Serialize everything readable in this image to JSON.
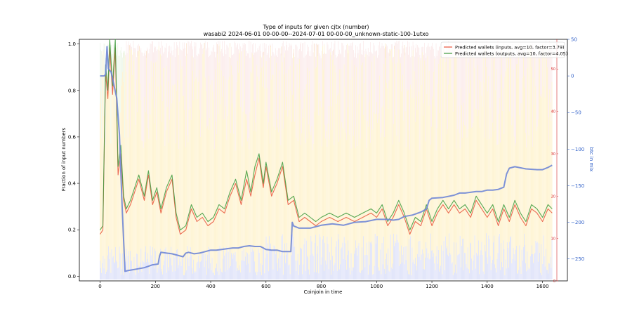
{
  "chart_data": {
    "type": "line",
    "title": "Type of inputs for given cjtx (number)",
    "subtitle": "wasabi2 2024-06-01 00-00-00--2024-07-01 00-00-00_unknown-static-100-1utxo",
    "xlabel": "Coinjoin in time",
    "ylabel": "Fraction of input numbers",
    "y2label": "btc in mix",
    "xlim": [
      -75,
      1690
    ],
    "ylim": [
      -0.02,
      1.02
    ],
    "y_red_lim": [
      0,
      57
    ],
    "y_blue_lim": [
      -280,
      50
    ],
    "x_ticks": [
      "0",
      "200",
      "400",
      "600",
      "800",
      "1000",
      "1200",
      "1400",
      "1600"
    ],
    "y_ticks": [
      "0.0",
      "0.2",
      "0.4",
      "0.6",
      "0.8",
      "1.0"
    ],
    "y_red_ticks": [
      "0",
      "10",
      "20",
      "30",
      "40",
      "50"
    ],
    "y_blue_ticks": [
      "50",
      "0",
      "−50",
      "−100",
      "−150",
      "−200",
      "−250"
    ],
    "legend": {
      "position": "upper right",
      "entries": [
        {
          "label": "Predicted wallets (inputs, avg=10, factor=3.79)",
          "color": "#e8533a"
        },
        {
          "label": "Predicted wallets (outputs, avg=10, factor=4.05)",
          "color": "#3c9a3c"
        }
      ]
    },
    "series": [
      {
        "name": "Predicted wallets (inputs, avg=10, factor=3.79)",
        "axis": "red",
        "color": "#e8533a",
        "x": [
          0,
          10,
          20,
          28,
          35,
          45,
          55,
          65,
          75,
          85,
          95,
          110,
          125,
          140,
          160,
          175,
          190,
          205,
          220,
          240,
          260,
          275,
          290,
          310,
          330,
          350,
          370,
          390,
          410,
          430,
          450,
          470,
          490,
          510,
          530,
          545,
          560,
          575,
          590,
          600,
          620,
          640,
          660,
          680,
          700,
          720,
          740,
          760,
          780,
          800,
          830,
          860,
          890,
          920,
          950,
          980,
          1000,
          1020,
          1040,
          1060,
          1080,
          1100,
          1120,
          1140,
          1160,
          1180,
          1200,
          1220,
          1240,
          1260,
          1280,
          1300,
          1320,
          1340,
          1360,
          1380,
          1400,
          1420,
          1440,
          1460,
          1480,
          1500,
          1520,
          1540,
          1560,
          1580,
          1600,
          1620,
          1635
        ],
        "y": [
          11,
          12,
          49,
          43,
          55,
          44,
          55,
          25,
          30,
          19,
          16,
          18,
          21,
          24,
          19,
          25,
          18,
          21,
          16,
          21,
          24,
          15,
          11,
          12,
          17,
          14,
          15,
          13,
          14,
          17,
          16,
          20,
          23,
          18,
          24,
          20,
          25,
          29,
          22,
          27,
          20,
          23,
          27,
          18,
          19,
          14,
          15,
          14,
          13,
          14,
          15,
          14,
          15,
          14,
          15,
          16,
          15,
          17,
          13,
          15,
          18,
          15,
          11,
          14,
          13,
          17,
          13,
          16,
          18,
          16,
          18,
          16,
          17,
          15,
          19,
          17,
          15,
          17,
          13,
          17,
          14,
          18,
          15,
          13,
          17,
          16,
          14,
          17,
          16
        ]
      },
      {
        "name": "Predicted wallets (outputs, avg=10, factor=4.05)",
        "axis": "red",
        "color": "#3c9a3c",
        "x": [
          0,
          10,
          20,
          28,
          35,
          45,
          55,
          65,
          75,
          85,
          95,
          110,
          125,
          140,
          160,
          175,
          190,
          205,
          220,
          240,
          260,
          275,
          290,
          310,
          330,
          350,
          370,
          390,
          410,
          430,
          450,
          470,
          490,
          510,
          530,
          545,
          560,
          575,
          590,
          600,
          620,
          640,
          660,
          680,
          700,
          720,
          740,
          760,
          780,
          800,
          830,
          860,
          890,
          920,
          950,
          980,
          1000,
          1020,
          1040,
          1060,
          1080,
          1100,
          1120,
          1140,
          1160,
          1180,
          1200,
          1220,
          1240,
          1260,
          1280,
          1300,
          1320,
          1340,
          1360,
          1380,
          1400,
          1420,
          1440,
          1460,
          1480,
          1500,
          1520,
          1540,
          1560,
          1580,
          1600,
          1620,
          1635
        ],
        "y": [
          12,
          13,
          51,
          45,
          57,
          46,
          57,
          27,
          32,
          20,
          17,
          19,
          22,
          25,
          20,
          26,
          19,
          22,
          17,
          22,
          25,
          16,
          12,
          13,
          18,
          15,
          16,
          14,
          15,
          18,
          17,
          21,
          24,
          19,
          26,
          21,
          27,
          30,
          23,
          28,
          21,
          24,
          28,
          19,
          20,
          15,
          16,
          15,
          14,
          15,
          16,
          15,
          16,
          15,
          16,
          17,
          16,
          18,
          14,
          16,
          19,
          16,
          12,
          15,
          14,
          18,
          14,
          17,
          19,
          17,
          19,
          17,
          18,
          16,
          20,
          18,
          16,
          18,
          14,
          18,
          15,
          19,
          16,
          14,
          18,
          17,
          15,
          18,
          17
        ]
      },
      {
        "name": "btc in mix",
        "axis": "blue",
        "color": "#6f86d6",
        "x": [
          0,
          15,
          20,
          25,
          30,
          40,
          60,
          70,
          80,
          90,
          100,
          130,
          160,
          190,
          210,
          215,
          220,
          240,
          260,
          280,
          300,
          310,
          320,
          340,
          360,
          380,
          400,
          420,
          440,
          460,
          480,
          500,
          520,
          540,
          560,
          580,
          600,
          620,
          640,
          660,
          680,
          690,
          695,
          700,
          720,
          760,
          800,
          840,
          880,
          920,
          960,
          1000,
          1040,
          1060,
          1080,
          1100,
          1130,
          1160,
          1180,
          1190,
          1200,
          1240,
          1280,
          1300,
          1320,
          1360,
          1380,
          1400,
          1420,
          1440,
          1460,
          1470,
          1480,
          1500,
          1540,
          1580,
          1600,
          1620,
          1635
        ],
        "y": [
          0,
          0,
          2,
          40,
          10,
          5,
          -30,
          -80,
          -180,
          -267,
          -266,
          -264,
          -262,
          -258,
          -257,
          -246,
          -241,
          -242,
          -243,
          -245,
          -247,
          -242,
          -241,
          -243,
          -242,
          -240,
          -238,
          -238,
          -237,
          -236,
          -235,
          -235,
          -233,
          -232,
          -233,
          -233,
          -237,
          -238,
          -238,
          -240,
          -240,
          -240,
          -200,
          -205,
          -208,
          -208,
          -204,
          -202,
          -204,
          -200,
          -199,
          -196,
          -196,
          -197,
          -196,
          -192,
          -190,
          -186,
          -182,
          -170,
          -167,
          -166,
          -163,
          -160,
          -160,
          -158,
          -158,
          -156,
          -156,
          -155,
          -152,
          -134,
          -126,
          -124,
          -127,
          -128,
          -128,
          -125,
          -122
        ]
      }
    ],
    "background_bars": {
      "description": "Per-coinjoin stacked vertical lines in pale colors (blue bottom band, yellow middle band, pink/green top band)",
      "colors": [
        "#aab4f0",
        "#fde8a6",
        "#f6c9c9",
        "#cfe9c6"
      ]
    }
  }
}
